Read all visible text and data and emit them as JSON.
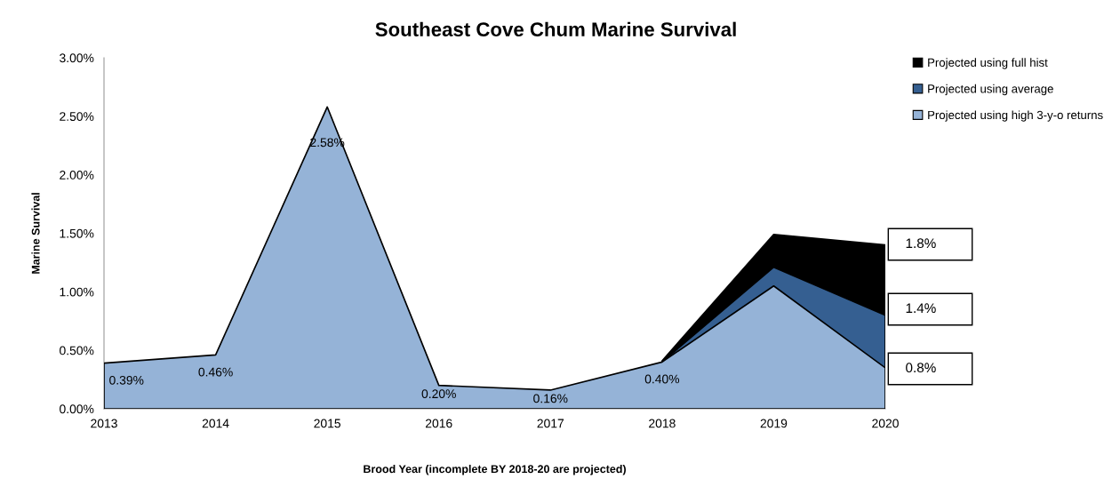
{
  "chart_data": {
    "type": "area",
    "title": "Southeast Cove Chum Marine Survival",
    "xlabel": "Brood Year (incomplete BY 2018-20 are projected)",
    "ylabel": "Marine Survival",
    "x": [
      2013,
      2014,
      2015,
      2016,
      2017,
      2018,
      2019,
      2020
    ],
    "series": [
      {
        "name": "Projected using full hist",
        "color": "#000000",
        "values": [
          null,
          null,
          null,
          null,
          null,
          0.41,
          1.49,
          1.4
        ]
      },
      {
        "name": "Projected using average",
        "color": "#355f91",
        "values": [
          null,
          null,
          null,
          null,
          null,
          0.4,
          1.21,
          0.8
        ]
      },
      {
        "name": "Projected using high 3-y-o returns",
        "color": "#95b3d7",
        "values": [
          0.39,
          0.46,
          2.58,
          0.2,
          0.16,
          0.4,
          1.05,
          0.35
        ],
        "value_labels": [
          "0.39%",
          "0.46%",
          "2.58%",
          "0.20%",
          "0.16%",
          "0.40%",
          null,
          null
        ]
      }
    ],
    "annotations": [
      "1.8%",
      "1.4%",
      "0.8%"
    ],
    "xlim": [
      2013,
      2020
    ],
    "xticks": [
      2013,
      2014,
      2015,
      2016,
      2017,
      2018,
      2019,
      2020
    ],
    "ylim": [
      0,
      3
    ],
    "yticks": [
      {
        "value": 0,
        "label": "0.00%"
      },
      {
        "value": 0.5,
        "label": "0.50%"
      },
      {
        "value": 1,
        "label": "1.00%"
      },
      {
        "value": 1.5,
        "label": "1.50%"
      },
      {
        "value": 2,
        "label": "2.00%"
      },
      {
        "value": 2.5,
        "label": "2.50%"
      },
      {
        "value": 3,
        "label": "3.00%"
      }
    ],
    "grid": false,
    "legend": "top right"
  }
}
